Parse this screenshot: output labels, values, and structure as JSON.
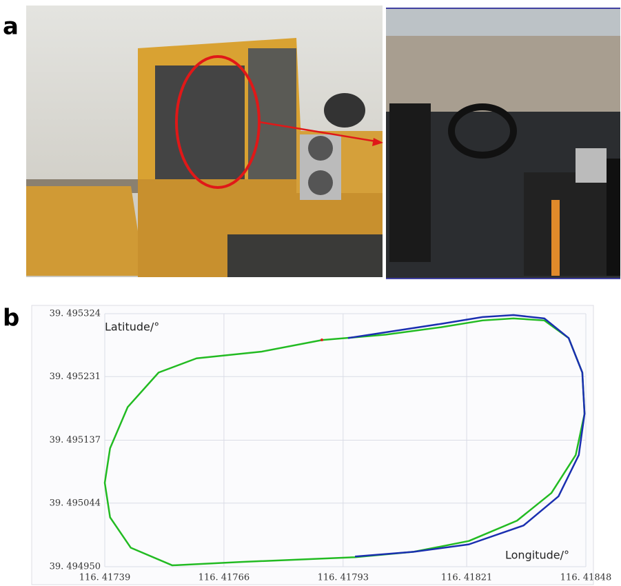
{
  "panel_labels": [
    "a",
    "b"
  ],
  "chart_data": {
    "type": "line",
    "annotations": [
      "Latitude/°",
      "Longitude/°"
    ],
    "xlim": [
      116.41739,
      116.41848
    ],
    "xticks": [
      {
        "value": 116.41739,
        "label": "116. 41739"
      },
      {
        "value": 116.41766,
        "label": "116. 41766"
      },
      {
        "value": 116.41793,
        "label": "116. 41793"
      },
      {
        "value": 116.41821,
        "label": "116. 41821"
      },
      {
        "value": 116.41848,
        "label": "116. 41848"
      }
    ],
    "ylim": [
      39.49495,
      39.495324
    ],
    "yticks": [
      {
        "value": 39.495324,
        "label": "39. 495324"
      },
      {
        "value": 39.495231,
        "label": "39. 495231"
      },
      {
        "value": 39.495137,
        "label": "39. 495137"
      },
      {
        "value": 39.495044,
        "label": "39. 495044"
      },
      {
        "value": 39.49495,
        "label": "39. 494950"
      }
    ],
    "grid": true,
    "series": [
      {
        "color": "#22bb22",
        "x": [
          116.417882,
          116.417746,
          116.417598,
          116.417512,
          116.417442,
          116.417402,
          116.41739,
          116.417402,
          116.417449,
          116.417543,
          116.417699,
          116.417957,
          116.41809,
          116.418215,
          116.418324,
          116.418402,
          116.418457,
          116.418477,
          116.418472,
          116.418441,
          116.418386,
          116.418316,
          116.418246,
          116.418152,
          116.418027,
          116.417882
        ],
        "values": [
          39.495285,
          39.495268,
          39.495258,
          39.495237,
          39.495186,
          39.495125,
          39.495074,
          39.495023,
          39.494978,
          39.494952,
          39.494957,
          39.494964,
          39.494972,
          39.494988,
          39.495018,
          39.495059,
          39.495115,
          39.495176,
          39.495237,
          39.495288,
          39.495314,
          39.495317,
          39.495314,
          39.495304,
          39.495293,
          39.495285
        ]
      },
      {
        "color": "#1a2fb0",
        "x": [
          116.417941,
          116.418152,
          116.418246,
          116.418316,
          116.418386,
          116.418441,
          116.418472,
          116.418477,
          116.418464,
          116.418418,
          116.418339,
          116.418215,
          116.41809,
          116.417957
        ],
        "values": [
          39.495288,
          39.495309,
          39.495319,
          39.495322,
          39.495317,
          39.495288,
          39.495237,
          39.495176,
          39.495115,
          39.495054,
          39.495011,
          39.494983,
          39.494972,
          39.494965
        ]
      }
    ]
  }
}
